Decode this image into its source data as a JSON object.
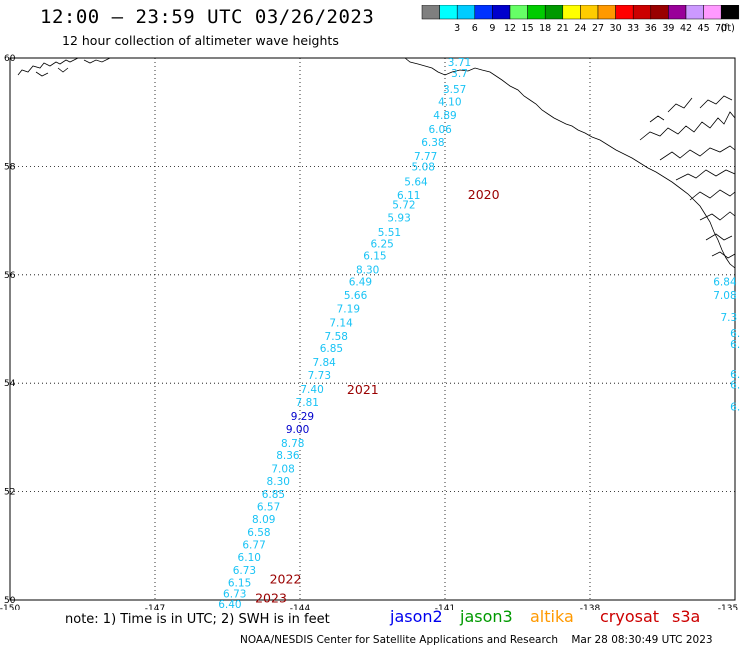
{
  "header": {
    "title": "12:00 – 23:59 UTC 03/26/2023",
    "subtitle": "12 hour collection of altimeter wave heights"
  },
  "legend": {
    "colors": [
      "#7f7f7f",
      "#00ffff",
      "#00ccff",
      "#0033ff",
      "#0000cc",
      "#66ff66",
      "#00cc00",
      "#009900",
      "#ffff00",
      "#ffcc00",
      "#ff9900",
      "#ff0000",
      "#cc0000",
      "#990000",
      "#990099",
      "#cc99ff",
      "#ff99ff",
      "#000000"
    ],
    "labels": [
      "3",
      "6",
      "9",
      "12",
      "15",
      "18",
      "21",
      "24",
      "27",
      "30",
      "33",
      "36",
      "39",
      "42",
      "45",
      "70"
    ],
    "unit": "(ft)"
  },
  "axes": {
    "lon_labels": [
      "-150",
      "-147",
      "-144",
      "-141",
      "-138",
      "-135"
    ],
    "lat_labels": [
      "50",
      "52",
      "54",
      "56",
      "58",
      "60"
    ]
  },
  "track_points": [
    {
      "label": "3.71",
      "lat": 59.85,
      "lon": -140.7
    },
    {
      "label": "3.7",
      "lat": 59.65,
      "lon": -140.7
    },
    {
      "label": "3.57",
      "lat": 59.35,
      "lon": -140.8
    },
    {
      "label": "4.10",
      "lat": 59.12,
      "lon": -140.9
    },
    {
      "label": "4.89",
      "lat": 58.87,
      "lon": -141.0
    },
    {
      "label": "6.06",
      "lat": 58.62,
      "lon": -141.1
    },
    {
      "label": "6.38",
      "lat": 58.38,
      "lon": -141.25
    },
    {
      "label": "7.77",
      "lat": 58.12,
      "lon": -141.4
    },
    {
      "label": "5.08",
      "lat": 57.92,
      "lon": -141.45
    },
    {
      "label": "5.64",
      "lat": 57.65,
      "lon": -141.6
    },
    {
      "label": "6.11",
      "lat": 57.4,
      "lon": -141.75
    },
    {
      "label": "5.72",
      "lat": 57.22,
      "lon": -141.85
    },
    {
      "label": "5.93",
      "lat": 56.98,
      "lon": -141.95
    },
    {
      "label": "5.51",
      "lat": 56.72,
      "lon": -142.15
    },
    {
      "label": "6.25",
      "lat": 56.5,
      "lon": -142.3
    },
    {
      "label": "6.15",
      "lat": 56.28,
      "lon": -142.45
    },
    {
      "label": "8.30",
      "lat": 56.02,
      "lon": -142.6
    },
    {
      "label": "6.49",
      "lat": 55.8,
      "lon": -142.75
    },
    {
      "label": "5.66",
      "lat": 55.55,
      "lon": -142.85
    },
    {
      "label": "7.19",
      "lat": 55.3,
      "lon": -143.0
    },
    {
      "label": "7.14",
      "lat": 55.05,
      "lon": -143.15
    },
    {
      "label": "7.58",
      "lat": 54.8,
      "lon": -143.25
    },
    {
      "label": "6.85",
      "lat": 54.58,
      "lon": -143.35
    },
    {
      "label": "7.84",
      "lat": 54.32,
      "lon": -143.5
    },
    {
      "label": "7.73",
      "lat": 54.08,
      "lon": -143.6
    },
    {
      "label": "7.40",
      "lat": 53.82,
      "lon": -143.75
    },
    {
      "label": "7.81",
      "lat": 53.58,
      "lon": -143.85
    },
    {
      "label": "9.29",
      "lat": 53.32,
      "lon": -143.95
    },
    {
      "label": "9.00",
      "lat": 53.08,
      "lon": -144.05
    },
    {
      "label": "8.78",
      "lat": 52.82,
      "lon": -144.15
    },
    {
      "label": "8.36",
      "lat": 52.6,
      "lon": -144.25
    },
    {
      "label": "7.08",
      "lat": 52.35,
      "lon": -144.35
    },
    {
      "label": "8.30",
      "lat": 52.12,
      "lon": -144.45
    },
    {
      "label": "6.85",
      "lat": 51.88,
      "lon": -144.55
    },
    {
      "label": "6.57",
      "lat": 51.65,
      "lon": -144.65
    },
    {
      "label": "8.09",
      "lat": 51.42,
      "lon": -144.75
    },
    {
      "label": "6.58",
      "lat": 51.18,
      "lon": -144.85
    },
    {
      "label": "6.77",
      "lat": 50.95,
      "lon": -144.95
    },
    {
      "label": "6.10",
      "lat": 50.72,
      "lon": -145.05
    },
    {
      "label": "6.73",
      "lat": 50.48,
      "lon": -145.15
    },
    {
      "label": "6.15",
      "lat": 50.25,
      "lon": -145.25
    },
    {
      "label": "6.73",
      "lat": 50.05,
      "lon": -145.35
    },
    {
      "label": "6.40",
      "lat": 49.85,
      "lon": -145.45
    }
  ],
  "edge_points": [
    {
      "label": "6.84",
      "lat": 55.8,
      "lon": -135.45
    },
    {
      "label": "7.08",
      "lat": 55.55,
      "lon": -135.45
    },
    {
      "label": "7.3",
      "lat": 55.15,
      "lon": -135.3
    },
    {
      "label": "6.",
      "lat": 54.85,
      "lon": -135.1
    },
    {
      "label": "6.",
      "lat": 54.65,
      "lon": -135.1
    },
    {
      "label": "6.",
      "lat": 54.1,
      "lon": -135.1
    },
    {
      "label": "6.",
      "lat": 53.9,
      "lon": -135.1
    },
    {
      "label": "6.",
      "lat": 53.5,
      "lon": -135.1
    }
  ],
  "hour_markers": [
    {
      "label": "2020",
      "lat": 57.4,
      "lon": -140.2
    },
    {
      "label": "2021",
      "lat": 53.8,
      "lon": -142.7
    },
    {
      "label": "2022",
      "lat": 50.3,
      "lon": -144.3
    },
    {
      "label": "2023",
      "lat": 49.95,
      "lon": -144.6
    }
  ],
  "note": "note:  1) Time is in UTC;  2) SWH is in feet",
  "missions": [
    {
      "name": "jason2",
      "color": "#0000ee"
    },
    {
      "name": "jason3",
      "color": "#009900"
    },
    {
      "name": "altika",
      "color": "#ff9900"
    },
    {
      "name": "cryosat",
      "color": "#cc0000"
    },
    {
      "name": "s3a",
      "color": "#cc0000"
    }
  ],
  "credit": "NOAA/NESDIS Center for Satellite Applications and Research    Mar 28 08:30:49 UTC 2023"
}
